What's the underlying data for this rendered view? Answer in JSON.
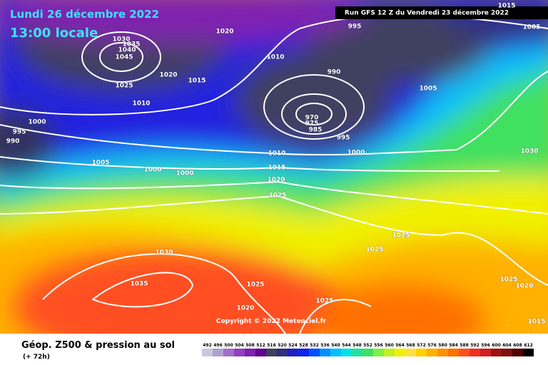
{
  "header": {
    "date": "Lundi 26 décembre 2022",
    "time": "13:00 locale",
    "run": "Run GFS 12 Z du Vendredi 23 décembre 2022"
  },
  "copyright": "Copyright © 2022 Meteociel.fr",
  "footer": {
    "title": "Géop. Z500 & pression au sol",
    "lead": "(+ 72h)"
  },
  "legend": {
    "labels": [
      492,
      496,
      500,
      504,
      508,
      512,
      516,
      520,
      524,
      528,
      532,
      536,
      540,
      544,
      548,
      552,
      556,
      560,
      564,
      568,
      572,
      576,
      580,
      584,
      588,
      592,
      596,
      600,
      604,
      608,
      612
    ],
    "colors": [
      "#c8c8dc",
      "#b0a0d0",
      "#a070c8",
      "#9040c0",
      "#8020b0",
      "#600090",
      "#404060",
      "#303080",
      "#2020c0",
      "#1020f0",
      "#0050ff",
      "#0090ff",
      "#00c0ff",
      "#00e0e0",
      "#20e0a0",
      "#40e060",
      "#80f040",
      "#c0f020",
      "#f0f000",
      "#ffe040",
      "#ffd000",
      "#ffb000",
      "#ff9000",
      "#ff7000",
      "#ff5020",
      "#f03020",
      "#d02020",
      "#a01010",
      "#801010",
      "#500000",
      "#000000"
    ]
  },
  "isobar_labels": [
    1030,
    1035,
    1040,
    1045,
    1020,
    995,
    1005,
    1015,
    1010,
    1020,
    1015,
    1025,
    1010,
    990,
    1005,
    970,
    975,
    985,
    995,
    1000,
    995,
    990,
    1030,
    1005,
    1000,
    1000,
    1010,
    1000,
    1015,
    1020,
    1025,
    1025,
    1025,
    1030,
    1035,
    1025,
    1025,
    1020,
    1025,
    1020,
    1015
  ]
}
